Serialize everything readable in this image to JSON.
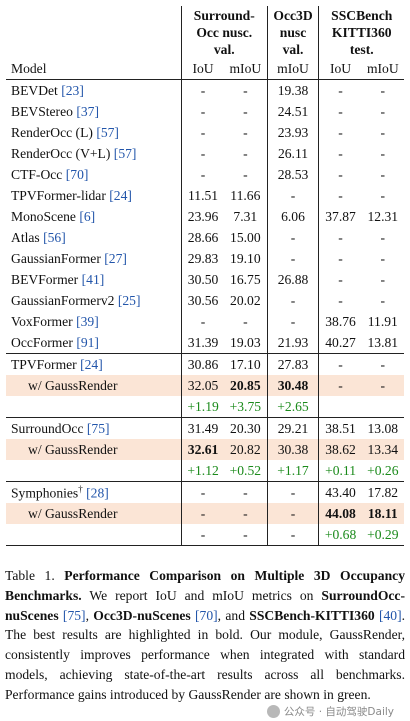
{
  "table": {
    "group_headers": {
      "surround": [
        "Surround-",
        "Occ nusc.",
        "val."
      ],
      "occ3d": [
        "Occ3D",
        "nusc",
        "val."
      ],
      "ssc": [
        "SSCBench",
        "KITTI360",
        "test."
      ]
    },
    "col_headers": {
      "model": "Model",
      "s_iou": "IoU",
      "s_miou": "mIoU",
      "o_miou": "mIoU",
      "k_iou": "IoU",
      "k_miou": "mIoU"
    },
    "baselines": [
      {
        "name": "BEVDet",
        "ref": "[23]",
        "cells": [
          "-",
          "-",
          "19.38",
          "-",
          "-"
        ]
      },
      {
        "name": "BEVStereo",
        "ref": "[37]",
        "cells": [
          "-",
          "-",
          "24.51",
          "-",
          "-"
        ]
      },
      {
        "name": "RenderOcc (L)",
        "ref": "[57]",
        "cells": [
          "-",
          "-",
          "23.93",
          "-",
          "-"
        ]
      },
      {
        "name": "RenderOcc (V+L)",
        "ref": "[57]",
        "cells": [
          "-",
          "-",
          "26.11",
          "-",
          "-"
        ]
      },
      {
        "name": "CTF-Occ",
        "ref": "[70]",
        "cells": [
          "-",
          "-",
          "28.53",
          "-",
          "-"
        ]
      },
      {
        "name": "TPVFormer-lidar",
        "ref": "[24]",
        "cells": [
          "11.51",
          "11.66",
          "-",
          "-",
          "-"
        ]
      },
      {
        "name": "MonoScene",
        "ref": "[6]",
        "cells": [
          "23.96",
          "7.31",
          "6.06",
          "37.87",
          "12.31"
        ]
      },
      {
        "name": "Atlas",
        "ref": "[56]",
        "cells": [
          "28.66",
          "15.00",
          "-",
          "-",
          "-"
        ]
      },
      {
        "name": "GaussianFormer",
        "ref": "[27]",
        "cells": [
          "29.83",
          "19.10",
          "-",
          "-",
          "-"
        ]
      },
      {
        "name": "BEVFormer",
        "ref": "[41]",
        "cells": [
          "30.50",
          "16.75",
          "26.88",
          "-",
          "-"
        ]
      },
      {
        "name": "GaussianFormerv2",
        "ref": "[25]",
        "cells": [
          "30.56",
          "20.02",
          "-",
          "-",
          "-"
        ]
      },
      {
        "name": "VoxFormer",
        "ref": "[39]",
        "cells": [
          "-",
          "-",
          "-",
          "38.76",
          "11.91"
        ]
      },
      {
        "name": "OccFormer",
        "ref": "[91]",
        "cells": [
          "31.39",
          "19.03",
          "21.93",
          "40.27",
          "13.81"
        ]
      }
    ],
    "groups": [
      {
        "base": {
          "name": "TPVFormer",
          "ref": "[24]",
          "cells": [
            "30.86",
            "17.10",
            "27.83",
            "-",
            "-"
          ]
        },
        "ours": {
          "name": "w/ GaussRender",
          "cells": [
            "32.05",
            "20.85",
            "30.48",
            "-",
            "-"
          ],
          "bold": [
            false,
            true,
            true,
            false,
            false
          ]
        },
        "gain": [
          "+1.19",
          "+3.75",
          "+2.65",
          "",
          ""
        ]
      },
      {
        "base": {
          "name": "SurroundOcc",
          "ref": "[75]",
          "cells": [
            "31.49",
            "20.30",
            "29.21",
            "38.51",
            "13.08"
          ]
        },
        "ours": {
          "name": "w/ GaussRender",
          "cells": [
            "32.61",
            "20.82",
            "30.38",
            "38.62",
            "13.34"
          ],
          "bold": [
            true,
            false,
            false,
            false,
            false
          ]
        },
        "gain": [
          "+1.12",
          "+0.52",
          "+1.17",
          "+0.11",
          "+0.26"
        ]
      },
      {
        "base": {
          "name": "Symphonies",
          "sup": "†",
          "ref": "[28]",
          "cells": [
            "-",
            "-",
            "-",
            "43.40",
            "17.82"
          ]
        },
        "ours": {
          "name": "w/ GaussRender",
          "cells": [
            "-",
            "-",
            "-",
            "44.08",
            "18.11"
          ],
          "bold": [
            false,
            false,
            false,
            true,
            true
          ]
        },
        "gain": [
          "-",
          "-",
          "-",
          "+0.68",
          "+0.29"
        ]
      }
    ],
    "colors": {
      "highlight": "#fbe5d6",
      "gain": "#1a8a1a",
      "ref": "#2255aa"
    }
  },
  "caption": {
    "label": "Table 1.",
    "title": "Performance Comparison on Multiple 3D Occupancy Benchmarks.",
    "t1": " We report IoU and mIoU metrics on ",
    "b1": "SurroundOcc-nuScenes",
    "r1": " [75]",
    "t2": ", ",
    "b2": "Occ3D-nuScenes",
    "r2": " [70]",
    "t3": ", and ",
    "b3": "SSCBench-KITTI360",
    "r3": " [40]",
    "t4": ". The best results are highlighted in bold. Our module, GaussRender, consistently improves performance when integrated with standard models, achieving state-of-the-art results across all benchmarks. Performance gains introduced by GaussRender are shown in green."
  },
  "watermark": {
    "text": "公众号 · 自动驾驶Daily",
    "icon": "wechat-icon"
  }
}
